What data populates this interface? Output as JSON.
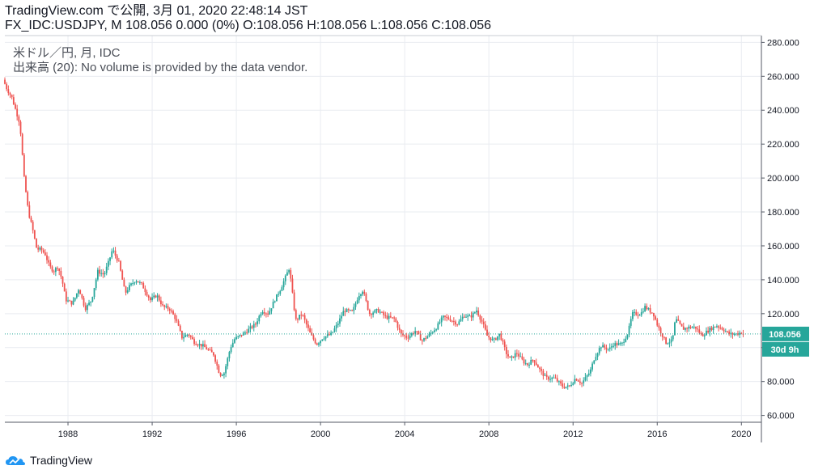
{
  "header": {
    "line1": "TradingView.com で公開, 3月 01, 2020 22:48:14 JST",
    "symbol": "FX_IDC:USDJPY",
    "interval": "M",
    "last": "108.056",
    "change": "0.000 (0%)",
    "open": "O:108.056",
    "high": "H:108.056",
    "low": "L:108.056",
    "close": "C:108.056"
  },
  "legend": {
    "series": "米ドル／円, 月, IDC",
    "volume": "出来高 (20): No volume is provided by the data vendor."
  },
  "footer": {
    "brand": "TradingView"
  },
  "colors": {
    "up": "#26a69a",
    "down": "#ef5350",
    "grid": "#e9ecf1",
    "axis": "#555a66",
    "price_line": "#26a69a"
  },
  "chart_data": {
    "type": "line",
    "title": "米ドル／円, 月, IDC",
    "xlabel": "",
    "ylabel": "",
    "x_ticks": [
      "1988",
      "1992",
      "1996",
      "2000",
      "2004",
      "2008",
      "2012",
      "2016",
      "2020"
    ],
    "y_ticks": [
      "60.000",
      "80.000",
      "100.000",
      "120.000",
      "140.000",
      "160.000",
      "180.000",
      "200.000",
      "220.000",
      "240.000",
      "260.000",
      "280.000"
    ],
    "ylim": [
      56,
      284
    ],
    "xlim": [
      1985.0,
      2020.95
    ],
    "grid": true,
    "last_price_label": "108.056",
    "countdown_label": "30d 9h",
    "series": [
      {
        "values": [
          [
            1985.0,
            258
          ],
          [
            1985.2,
            252
          ],
          [
            1985.4,
            248
          ],
          [
            1985.6,
            240
          ],
          [
            1985.8,
            232
          ],
          [
            1986.0,
            200
          ],
          [
            1986.2,
            180
          ],
          [
            1986.4,
            170
          ],
          [
            1986.6,
            158
          ],
          [
            1986.8,
            158
          ],
          [
            1987.0,
            155
          ],
          [
            1987.2,
            148
          ],
          [
            1987.4,
            145
          ],
          [
            1987.6,
            148
          ],
          [
            1987.8,
            140
          ],
          [
            1987.95,
            130
          ],
          [
            1988.0,
            128
          ],
          [
            1988.3,
            126
          ],
          [
            1988.6,
            135
          ],
          [
            1988.9,
            123
          ],
          [
            1989.2,
            128
          ],
          [
            1989.5,
            145
          ],
          [
            1989.8,
            143
          ],
          [
            1990.0,
            150
          ],
          [
            1990.2,
            158
          ],
          [
            1990.5,
            150
          ],
          [
            1990.8,
            132
          ],
          [
            1991.0,
            136
          ],
          [
            1991.3,
            140
          ],
          [
            1991.6,
            137
          ],
          [
            1992.0,
            128
          ],
          [
            1992.3,
            131
          ],
          [
            1992.6,
            124
          ],
          [
            1992.9,
            123
          ],
          [
            1993.2,
            117
          ],
          [
            1993.5,
            106
          ],
          [
            1993.8,
            108
          ],
          [
            1994.1,
            103
          ],
          [
            1994.5,
            101
          ],
          [
            1994.8,
            98
          ],
          [
            1995.0,
            96
          ],
          [
            1995.3,
            84
          ],
          [
            1995.5,
            85
          ],
          [
            1995.8,
            100
          ],
          [
            1996.0,
            105
          ],
          [
            1996.5,
            109
          ],
          [
            1997.0,
            114
          ],
          [
            1997.3,
            122
          ],
          [
            1997.6,
            120
          ],
          [
            1997.9,
            128
          ],
          [
            1998.2,
            135
          ],
          [
            1998.6,
            147
          ],
          [
            1998.9,
            116
          ],
          [
            1999.2,
            120
          ],
          [
            1999.6,
            108
          ],
          [
            1999.9,
            102
          ],
          [
            2000.2,
            106
          ],
          [
            2000.6,
            108
          ],
          [
            2000.9,
            114
          ],
          [
            2001.2,
            122
          ],
          [
            2001.6,
            121
          ],
          [
            2001.9,
            131
          ],
          [
            2002.1,
            134
          ],
          [
            2002.4,
            120
          ],
          [
            2002.8,
            122
          ],
          [
            2003.2,
            118
          ],
          [
            2003.6,
            117
          ],
          [
            2003.9,
            108
          ],
          [
            2004.2,
            106
          ],
          [
            2004.6,
            110
          ],
          [
            2004.9,
            104
          ],
          [
            2005.2,
            107
          ],
          [
            2005.6,
            112
          ],
          [
            2005.9,
            118
          ],
          [
            2006.2,
            117
          ],
          [
            2006.6,
            114
          ],
          [
            2006.9,
            119
          ],
          [
            2007.2,
            118
          ],
          [
            2007.5,
            122
          ],
          [
            2007.8,
            114
          ],
          [
            2008.0,
            107
          ],
          [
            2008.3,
            104
          ],
          [
            2008.6,
            108
          ],
          [
            2008.9,
            97
          ],
          [
            2009.1,
            93
          ],
          [
            2009.4,
            97
          ],
          [
            2009.7,
            92
          ],
          [
            2009.9,
            90
          ],
          [
            2010.2,
            93
          ],
          [
            2010.5,
            87
          ],
          [
            2010.8,
            82
          ],
          [
            2011.2,
            82
          ],
          [
            2011.6,
            77
          ],
          [
            2011.9,
            77
          ],
          [
            2012.2,
            82
          ],
          [
            2012.5,
            79
          ],
          [
            2012.9,
            86
          ],
          [
            2013.1,
            94
          ],
          [
            2013.4,
            101
          ],
          [
            2013.8,
            99
          ],
          [
            2014.0,
            102
          ],
          [
            2014.4,
            102
          ],
          [
            2014.7,
            109
          ],
          [
            2014.9,
            120
          ],
          [
            2015.3,
            120
          ],
          [
            2015.5,
            124
          ],
          [
            2015.9,
            120
          ],
          [
            2016.1,
            113
          ],
          [
            2016.5,
            103
          ],
          [
            2016.8,
            104
          ],
          [
            2016.95,
            117
          ],
          [
            2017.3,
            111
          ],
          [
            2017.6,
            112
          ],
          [
            2017.9,
            112
          ],
          [
            2018.2,
            107
          ],
          [
            2018.6,
            111
          ],
          [
            2018.9,
            113
          ],
          [
            2019.2,
            111
          ],
          [
            2019.5,
            108
          ],
          [
            2019.8,
            108
          ],
          [
            2020.1,
            109
          ],
          [
            2020.15,
            108.056
          ]
        ]
      }
    ]
  }
}
